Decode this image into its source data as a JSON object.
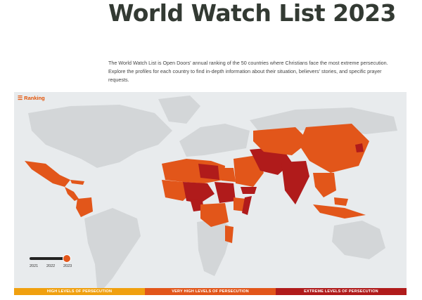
{
  "page": {
    "title": "World Watch List 2023",
    "intro_line1": "The World Watch List is Open Doors' annual ranking of the 50 countries where Christians face the most extreme persecution.",
    "intro_line2": "Explore the profiles for each country to find in-depth information about their situation, believers' stories, and specific prayer requests."
  },
  "map": {
    "ranking_label": "Ranking",
    "ranking_icon": "menu-icon",
    "colors": {
      "water": "#e8ebed",
      "land": "#d3d6d8",
      "very_high": "#e2561a",
      "extreme": "#b01b1b",
      "high": "#f0a00f"
    }
  },
  "slider": {
    "years": [
      "2021",
      "2022",
      "2023"
    ],
    "selected": "2023"
  },
  "legend": {
    "high": "HIGH LEVELS OF PERSECUTION",
    "very_high": "VERY HIGH LEVELS OF PERSECUTION",
    "extreme": "EXTREME LEVELS OF PERSECUTION"
  }
}
